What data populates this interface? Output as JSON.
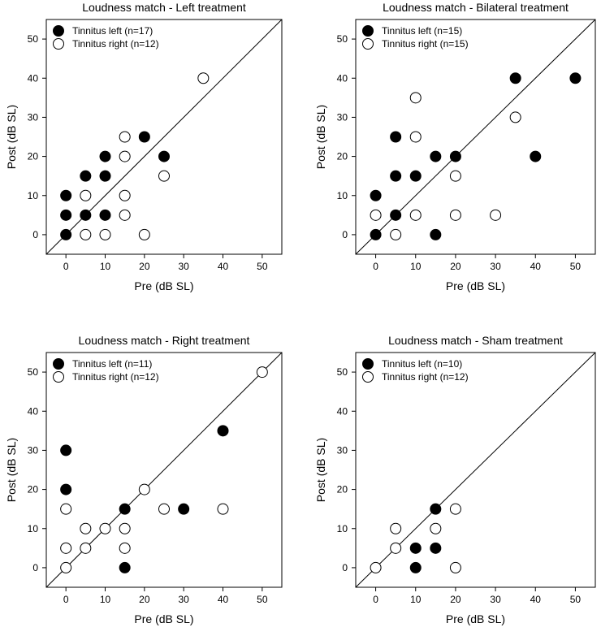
{
  "chart_data": [
    {
      "type": "scatter",
      "title": "Loudness match - Left treatment",
      "xlabel": "Pre (dB SL)",
      "ylabel": "Post (dB SL)",
      "xlim": [
        -5,
        55
      ],
      "ylim": [
        -5,
        55
      ],
      "xticks": [
        0,
        10,
        20,
        30,
        40,
        50
      ],
      "yticks": [
        0,
        10,
        20,
        30,
        40,
        50
      ],
      "identity_line": true,
      "legend_position": "top-left",
      "series": [
        {
          "name": "Tinnitus left (n=17)",
          "marker": "filled-circle",
          "color": "#000000",
          "points": [
            [
              0,
              0
            ],
            [
              0,
              5
            ],
            [
              0,
              10
            ],
            [
              5,
              5
            ],
            [
              5,
              15
            ],
            [
              10,
              5
            ],
            [
              10,
              15
            ],
            [
              10,
              20
            ],
            [
              20,
              25
            ],
            [
              25,
              20
            ]
          ]
        },
        {
          "name": "Tinnitus right (n=12)",
          "marker": "open-circle",
          "color": "#000000",
          "points": [
            [
              5,
              0
            ],
            [
              5,
              10
            ],
            [
              10,
              0
            ],
            [
              15,
              5
            ],
            [
              15,
              10
            ],
            [
              15,
              20
            ],
            [
              15,
              25
            ],
            [
              20,
              0
            ],
            [
              25,
              15
            ],
            [
              35,
              40
            ]
          ]
        }
      ]
    },
    {
      "type": "scatter",
      "title": "Loudness match - Bilateral treatment",
      "xlabel": "Pre (dB SL)",
      "ylabel": "Post (dB SL)",
      "xlim": [
        -5,
        55
      ],
      "ylim": [
        -5,
        55
      ],
      "xticks": [
        0,
        10,
        20,
        30,
        40,
        50
      ],
      "yticks": [
        0,
        10,
        20,
        30,
        40,
        50
      ],
      "identity_line": true,
      "legend_position": "top-left",
      "series": [
        {
          "name": "Tinnitus left (n=15)",
          "marker": "filled-circle",
          "color": "#000000",
          "points": [
            [
              0,
              0
            ],
            [
              0,
              10
            ],
            [
              5,
              5
            ],
            [
              5,
              15
            ],
            [
              5,
              25
            ],
            [
              10,
              15
            ],
            [
              15,
              0
            ],
            [
              15,
              20
            ],
            [
              20,
              20
            ],
            [
              35,
              40
            ],
            [
              40,
              20
            ],
            [
              50,
              40
            ]
          ]
        },
        {
          "name": "Tinnitus right (n=15)",
          "marker": "open-circle",
          "color": "#000000",
          "points": [
            [
              0,
              5
            ],
            [
              5,
              0
            ],
            [
              10,
              5
            ],
            [
              10,
              25
            ],
            [
              10,
              35
            ],
            [
              20,
              5
            ],
            [
              20,
              15
            ],
            [
              30,
              5
            ],
            [
              35,
              30
            ]
          ]
        }
      ]
    },
    {
      "type": "scatter",
      "title": "Loudness match - Right treatment",
      "xlabel": "Pre (dB SL)",
      "ylabel": "Post (dB SL)",
      "xlim": [
        -5,
        55
      ],
      "ylim": [
        -5,
        55
      ],
      "xticks": [
        0,
        10,
        20,
        30,
        40,
        50
      ],
      "yticks": [
        0,
        10,
        20,
        30,
        40,
        50
      ],
      "identity_line": true,
      "legend_position": "top-left",
      "series": [
        {
          "name": "Tinnitus left (n=11)",
          "marker": "filled-circle",
          "color": "#000000",
          "points": [
            [
              0,
              20
            ],
            [
              0,
              30
            ],
            [
              15,
              0
            ],
            [
              15,
              15
            ],
            [
              30,
              15
            ],
            [
              40,
              35
            ]
          ]
        },
        {
          "name": "Tinnitus right (n=12)",
          "marker": "open-circle",
          "color": "#000000",
          "points": [
            [
              0,
              0
            ],
            [
              0,
              5
            ],
            [
              0,
              15
            ],
            [
              5,
              5
            ],
            [
              5,
              10
            ],
            [
              10,
              10
            ],
            [
              15,
              5
            ],
            [
              15,
              10
            ],
            [
              20,
              20
            ],
            [
              25,
              15
            ],
            [
              40,
              15
            ],
            [
              50,
              50
            ]
          ]
        }
      ]
    },
    {
      "type": "scatter",
      "title": "Loudness match - Sham treatment",
      "xlabel": "Pre (dB SL)",
      "ylabel": "Post (dB SL)",
      "xlim": [
        -5,
        55
      ],
      "ylim": [
        -5,
        55
      ],
      "xticks": [
        0,
        10,
        20,
        30,
        40,
        50
      ],
      "yticks": [
        0,
        10,
        20,
        30,
        40,
        50
      ],
      "identity_line": true,
      "legend_position": "top-left",
      "series": [
        {
          "name": "Tinnitus left (n=10)",
          "marker": "filled-circle",
          "color": "#000000",
          "points": [
            [
              10,
              0
            ],
            [
              10,
              5
            ],
            [
              15,
              5
            ],
            [
              15,
              15
            ]
          ]
        },
        {
          "name": "Tinnitus right (n=12)",
          "marker": "open-circle",
          "color": "#000000",
          "points": [
            [
              0,
              0
            ],
            [
              5,
              5
            ],
            [
              5,
              10
            ],
            [
              15,
              10
            ],
            [
              20,
              0
            ],
            [
              20,
              15
            ]
          ]
        }
      ]
    }
  ]
}
